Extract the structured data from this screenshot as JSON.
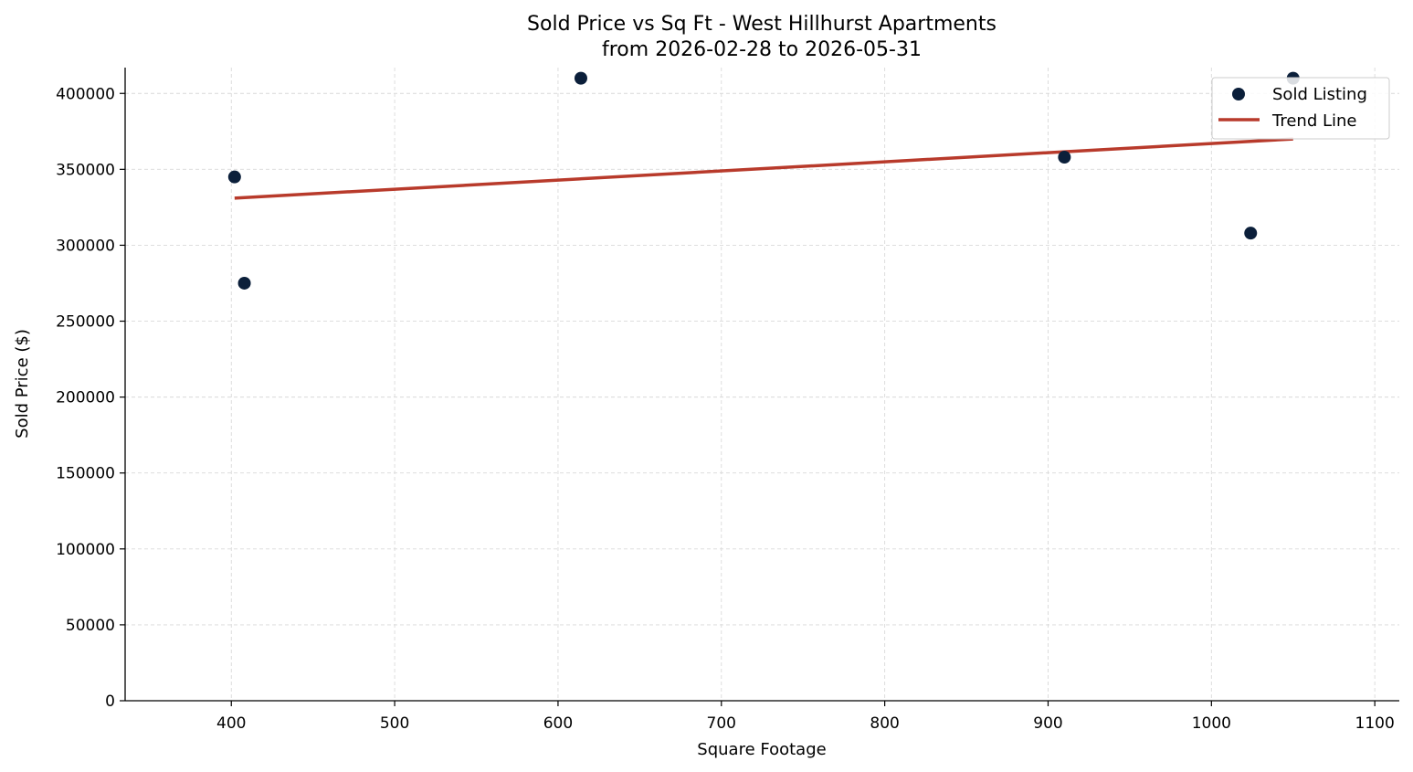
{
  "chart_data": {
    "type": "scatter",
    "title": "Sold Price vs Sq Ft - West Hillhurst Apartments",
    "subtitle": "from 2026-02-28 to 2026-05-31",
    "xlabel": "Square Footage",
    "ylabel": "Sold Price ($)",
    "xlim": [
      335,
      1115
    ],
    "ylim": [
      0,
      417000
    ],
    "x_ticks": [
      400,
      500,
      600,
      700,
      800,
      900,
      1000,
      1100
    ],
    "y_ticks": [
      0,
      50000,
      100000,
      150000,
      200000,
      250000,
      300000,
      350000,
      400000
    ],
    "grid": true,
    "legend_position": "top-right",
    "series": [
      {
        "name": "Sold Listing",
        "kind": "scatter",
        "color": "#0b1f3a",
        "points": [
          {
            "x": 402,
            "y": 345000
          },
          {
            "x": 408,
            "y": 275000
          },
          {
            "x": 614,
            "y": 410000
          },
          {
            "x": 910,
            "y": 358000
          },
          {
            "x": 1024,
            "y": 308000
          },
          {
            "x": 1050,
            "y": 410000
          }
        ]
      },
      {
        "name": "Trend Line",
        "kind": "line",
        "color": "#b83a2b",
        "points": [
          {
            "x": 402,
            "y": 331000
          },
          {
            "x": 1050,
            "y": 370000
          }
        ]
      }
    ]
  }
}
